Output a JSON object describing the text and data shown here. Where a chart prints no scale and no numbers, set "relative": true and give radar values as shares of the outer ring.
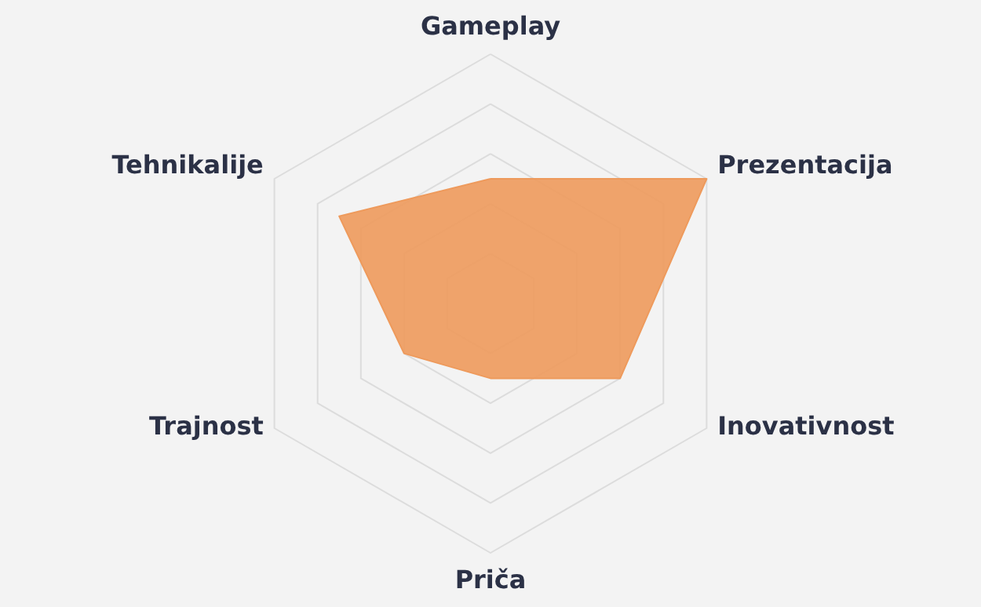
{
  "chart_data": {
    "type": "radar",
    "relative": true,
    "grid": true,
    "categories": [
      "Gameplay",
      "Prezentacija",
      "Inovativnost",
      "Priča",
      "Trajnost",
      "Tehnikalije"
    ],
    "series": [
      {
        "color": "#ee9a5c",
        "values": [
          0.5,
          1,
          0.6,
          0.3,
          0.4,
          0.7
        ]
      }
    ]
  }
}
